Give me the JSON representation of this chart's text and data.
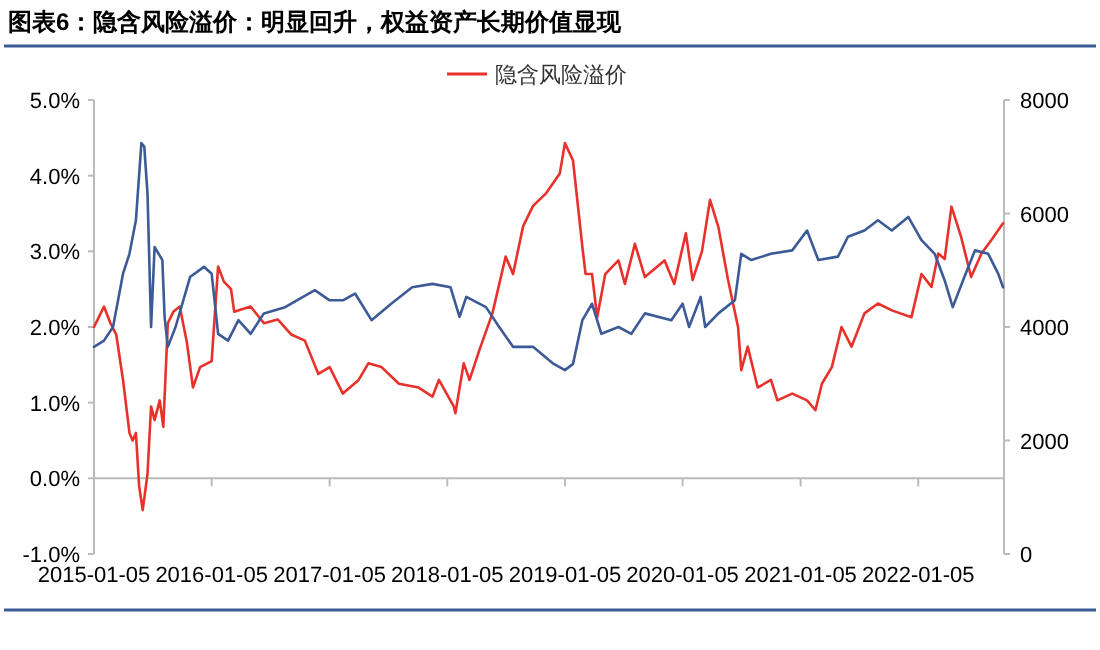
{
  "chart_data": {
    "type": "line",
    "title": "图表6：隐含风险溢价：明显回升，权益资产长期价值显现",
    "xlim": [
      "2015-01-05",
      "2022-09-28"
    ],
    "xticks": [
      "2015-01-05",
      "2016-01-05",
      "2017-01-05",
      "2018-01-05",
      "2019-01-05",
      "2020-01-05",
      "2021-01-05",
      "2022-01-05"
    ],
    "ylim": [
      -1,
      5
    ],
    "yticks": [
      {
        "value": -1,
        "label": "-1.0%"
      },
      {
        "value": 0,
        "label": "0.0%"
      },
      {
        "value": 1,
        "label": "1.0%"
      },
      {
        "value": 2,
        "label": "2.0%"
      },
      {
        "value": 3,
        "label": "3.0%"
      },
      {
        "value": 4,
        "label": "4.0%"
      },
      {
        "value": 5,
        "label": "5.0%"
      }
    ],
    "y2lim": [
      0,
      8000
    ],
    "y2ticks": [
      0,
      2000,
      4000,
      6000,
      8000
    ],
    "legend": "top",
    "series": [
      {
        "name": "隐含风险溢价",
        "color": "#e8312a",
        "x": [
          "2015-01-05",
          "2015-02-05",
          "2015-02-25",
          "2015-03-15",
          "2015-04-05",
          "2015-04-25",
          "2015-05-05",
          "2015-05-15",
          "2015-05-25",
          "2015-06-05",
          "2015-06-20",
          "2015-07-01",
          "2015-07-12",
          "2015-07-28",
          "2015-08-08",
          "2015-08-22",
          "2015-09-08",
          "2015-09-28",
          "2015-10-20",
          "2015-11-08",
          "2015-11-30",
          "2016-01-05",
          "2016-01-25",
          "2016-02-12",
          "2016-03-05",
          "2016-03-15",
          "2016-05-05",
          "2016-06-15",
          "2016-07-28",
          "2016-09-08",
          "2016-10-20",
          "2016-12-01",
          "2017-01-05",
          "2017-02-15",
          "2017-04-05",
          "2017-05-05",
          "2017-06-15",
          "2017-08-08",
          "2017-10-08",
          "2017-11-20",
          "2017-12-10",
          "2018-01-25",
          "2018-01-30",
          "2018-02-25",
          "2018-03-15",
          "2018-04-15",
          "2018-05-25",
          "2018-07-05",
          "2018-07-28",
          "2018-08-28",
          "2018-09-28",
          "2018-11-08",
          "2018-12-20",
          "2019-01-05",
          "2019-01-30",
          "2019-02-28",
          "2019-03-10",
          "2019-03-30",
          "2019-04-15",
          "2019-05-10",
          "2019-06-20",
          "2019-07-10",
          "2019-08-10",
          "2019-09-10",
          "2019-11-10",
          "2019-12-10",
          "2020-01-15",
          "2020-02-05",
          "2020-03-05",
          "2020-03-30",
          "2020-04-25",
          "2020-05-25",
          "2020-06-25",
          "2020-07-05",
          "2020-07-25",
          "2020-08-25",
          "2020-10-05",
          "2020-10-25",
          "2020-12-10",
          "2021-01-25",
          "2021-02-20",
          "2021-03-12",
          "2021-04-12",
          "2021-05-12",
          "2021-06-12",
          "2021-07-22",
          "2021-09-02",
          "2021-10-15",
          "2021-12-15",
          "2022-01-15",
          "2022-02-15",
          "2022-03-08",
          "2022-03-28",
          "2022-04-18",
          "2022-05-18",
          "2022-06-18",
          "2022-07-20",
          "2022-08-20",
          "2022-09-25"
        ],
        "values": [
          2.0,
          2.27,
          2.05,
          1.9,
          1.3,
          0.6,
          0.5,
          0.6,
          -0.1,
          -0.42,
          0.06,
          0.95,
          0.77,
          1.03,
          0.68,
          2.05,
          2.2,
          2.27,
          1.8,
          1.2,
          1.47,
          1.55,
          2.8,
          2.6,
          2.5,
          2.2,
          2.27,
          2.05,
          2.1,
          1.9,
          1.82,
          1.38,
          1.47,
          1.12,
          1.3,
          1.52,
          1.47,
          1.25,
          1.2,
          1.08,
          1.3,
          0.95,
          0.86,
          1.52,
          1.3,
          1.7,
          2.18,
          2.93,
          2.7,
          3.33,
          3.6,
          3.77,
          4.03,
          4.43,
          4.2,
          3.06,
          2.7,
          2.7,
          2.13,
          2.7,
          2.88,
          2.57,
          3.1,
          2.66,
          2.88,
          2.57,
          3.24,
          2.62,
          3.0,
          3.68,
          3.32,
          2.62,
          2.0,
          1.43,
          1.74,
          1.2,
          1.3,
          1.03,
          1.12,
          1.03,
          0.9,
          1.25,
          1.47,
          2.0,
          1.74,
          2.18,
          2.31,
          2.22,
          2.13,
          2.7,
          2.53,
          2.97,
          2.9,
          3.59,
          3.19,
          2.66,
          2.97,
          3.15,
          3.37
        ]
      },
      {
        "color": "#3c5a96",
        "axis": "y2",
        "x": [
          "2015-01-05",
          "2015-02-05",
          "2015-03-05",
          "2015-04-05",
          "2015-04-25",
          "2015-05-15",
          "2015-06-01",
          "2015-06-10",
          "2015-06-20",
          "2015-07-01",
          "2015-07-12",
          "2015-08-05",
          "2015-08-12",
          "2015-08-22",
          "2015-09-15",
          "2015-10-30",
          "2015-12-12",
          "2016-01-05",
          "2016-01-25",
          "2016-02-25",
          "2016-03-28",
          "2016-05-05",
          "2016-06-15",
          "2016-08-20",
          "2016-11-20",
          "2017-01-05",
          "2017-02-15",
          "2017-03-25",
          "2017-05-15",
          "2017-07-15",
          "2017-09-18",
          "2017-11-20",
          "2018-01-15",
          "2018-02-12",
          "2018-03-05",
          "2018-05-05",
          "2018-06-15",
          "2018-07-28",
          "2018-09-28",
          "2018-12-01",
          "2019-01-05",
          "2019-01-30",
          "2019-02-28",
          "2019-03-30",
          "2019-04-28",
          "2019-06-20",
          "2019-07-30",
          "2019-09-10",
          "2019-12-01",
          "2020-01-05",
          "2020-01-25",
          "2020-03-01",
          "2020-03-15",
          "2020-04-25",
          "2020-06-15",
          "2020-07-05",
          "2020-08-05",
          "2020-10-05",
          "2020-12-10",
          "2021-01-25",
          "2021-03-01",
          "2021-05-01",
          "2021-06-01",
          "2021-07-22",
          "2021-09-02",
          "2021-10-15",
          "2021-12-05",
          "2022-01-15",
          "2022-02-25",
          "2022-03-28",
          "2022-04-22",
          "2022-05-28",
          "2022-06-30",
          "2022-08-10",
          "2022-09-10",
          "2022-09-25"
        ],
        "values": [
          3650,
          3760,
          4000,
          4940,
          5290,
          5880,
          7240,
          7180,
          6350,
          4000,
          5410,
          5180,
          4180,
          3650,
          4000,
          4880,
          5060,
          4940,
          3880,
          3760,
          4120,
          3880,
          4240,
          4350,
          4650,
          4470,
          4470,
          4590,
          4120,
          4410,
          4700,
          4760,
          4700,
          4180,
          4530,
          4350,
          4000,
          3650,
          3650,
          3350,
          3240,
          3350,
          4120,
          4410,
          3880,
          4000,
          3880,
          4240,
          4120,
          4410,
          4000,
          4530,
          4000,
          4240,
          4470,
          5290,
          5180,
          5290,
          5350,
          5700,
          5180,
          5240,
          5590,
          5700,
          5880,
          5700,
          5940,
          5530,
          5290,
          4820,
          4350,
          4880,
          5350,
          5290,
          4940,
          4700
        ]
      }
    ]
  }
}
